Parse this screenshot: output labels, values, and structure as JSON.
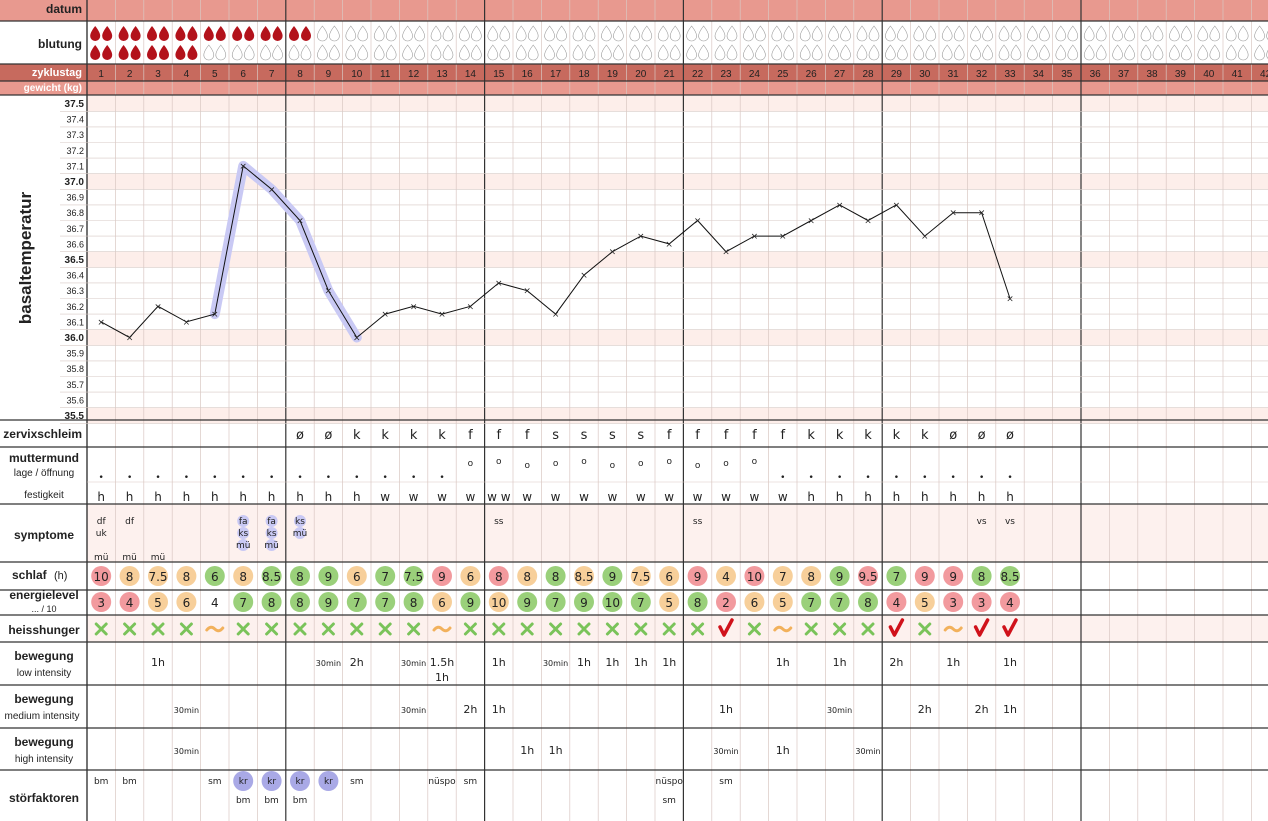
{
  "labels": {
    "datum": "datum",
    "blutung": "blutung",
    "zyklustag": "zyklustag",
    "gewicht": "gewicht (kg)",
    "basaltemperatur": "basaltemperatur",
    "zervixschleim": "zervixschleim",
    "muttermund": "muttermund",
    "muttermund_sub": "lage / öffnung",
    "festigkeit": "festigkeit",
    "symptome": "symptome",
    "schlaf": "schlaf",
    "schlaf_unit": "(h)",
    "energielevel": "energielevel",
    "energielevel_sub": "... / 10",
    "heisshunger": "heisshunger",
    "bewegung": "bewegung",
    "low_intensity": "low intensity",
    "medium_intensity": "medium intensity",
    "high_intensity": "high intensity",
    "stoerfaktoren": "störfaktoren"
  },
  "days": [
    "1",
    "2",
    "3",
    "4",
    "5",
    "6",
    "7",
    "8",
    "9",
    "10",
    "11",
    "12",
    "13",
    "14",
    "15",
    "16",
    "17",
    "18",
    "19",
    "20",
    "21",
    "22",
    "23",
    "24",
    "25",
    "26",
    "27",
    "28",
    "29",
    "30",
    "31",
    "32",
    "33",
    "34",
    "35",
    "36",
    "37",
    "38",
    "39",
    "40",
    "41",
    "42"
  ],
  "temperature_scale": [
    "37.5",
    "37.4",
    "37.3",
    "37.2",
    "37.1",
    "37.0",
    "36.9",
    "36.8",
    "36.7",
    "36.6",
    "36.5",
    "36.4",
    "36.3",
    "36.2",
    "36.1",
    "36.0",
    "35.9",
    "35.8",
    "35.7",
    "35.6",
    "35.5"
  ],
  "colors": {
    "header_red": "#e8998f",
    "zyklus_dark": "#c76a5e",
    "blood": "#b3121b",
    "green": "#9ad07a",
    "orange": "#f7cf9a",
    "pink": "#f29a9e",
    "blue_mark": "#a9a9e6",
    "tilde": "#f2b15c",
    "check": "#d0121b"
  },
  "chart_data": {
    "type": "line",
    "ylabel": "basaltemperatur",
    "ylim": [
      35.5,
      37.5
    ],
    "x": [
      1,
      2,
      3,
      4,
      5,
      6,
      7,
      8,
      9,
      10,
      11,
      12,
      13,
      14,
      15,
      16,
      17,
      18,
      19,
      20,
      21,
      22,
      23,
      24,
      25,
      26,
      27,
      28,
      29,
      30,
      31,
      32,
      33
    ],
    "y": [
      36.1,
      36.0,
      36.2,
      36.1,
      36.15,
      37.1,
      36.95,
      36.75,
      36.3,
      36.0,
      36.15,
      36.2,
      36.15,
      36.2,
      36.35,
      36.3,
      36.15,
      36.4,
      36.55,
      36.65,
      36.6,
      36.75,
      36.55,
      36.65,
      36.65,
      36.75,
      36.85,
      36.75,
      36.85,
      36.65,
      36.8,
      36.8,
      36.25
    ],
    "highlighted_days": [
      6,
      7,
      8,
      9,
      10
    ]
  },
  "blutung": {
    "top": [
      3,
      3,
      3,
      3,
      3,
      3,
      2,
      1,
      0,
      0,
      0,
      0,
      0,
      0,
      0,
      0,
      0,
      0,
      0,
      0,
      0,
      0,
      0,
      0,
      0,
      0,
      0,
      0,
      0,
      0,
      0,
      0,
      0,
      0,
      0,
      0,
      0,
      0,
      0,
      0,
      0,
      0
    ],
    "bottom": [
      3,
      3,
      3,
      1,
      0,
      0,
      0,
      0,
      0,
      0,
      0,
      0,
      0,
      0,
      0,
      0,
      0,
      0,
      0,
      0,
      0,
      0,
      0,
      0,
      0,
      0,
      0,
      0,
      0,
      0,
      0,
      0,
      0,
      0,
      0,
      0,
      0,
      0,
      0,
      0,
      0,
      0
    ]
  },
  "zervixschleim": [
    "",
    "",
    "",
    "",
    "",
    "",
    "",
    "ø",
    "ø",
    "k",
    "k",
    "k",
    "k",
    "f",
    "f",
    "f",
    "s",
    "s",
    "s",
    "s",
    "f",
    "f",
    "f",
    "f",
    "f",
    "k",
    "k",
    "k",
    "k",
    "k",
    "ø",
    "ø",
    "ø"
  ],
  "muttermund_dots": [
    "•",
    "•",
    "•",
    "•",
    "•",
    "•",
    "•",
    "•",
    "•",
    "•",
    "•",
    "•",
    "•",
    "o",
    "o",
    "o",
    "o",
    "o",
    "o",
    "o",
    "o",
    "o",
    "o",
    "o",
    "•",
    "•",
    "•",
    "•",
    "•",
    "•",
    "•",
    "•",
    "•"
  ],
  "festigkeit": [
    "h",
    "h",
    "h",
    "h",
    "h",
    "h",
    "h",
    "h",
    "h",
    "h",
    "w",
    "w",
    "w",
    "w",
    "w w",
    "w",
    "w",
    "w",
    "w",
    "w",
    "w",
    "w",
    "w",
    "w",
    "w",
    "h",
    "h",
    "h",
    "h",
    "h",
    "h",
    "h",
    "h"
  ],
  "symptome": {
    "1": [
      "df",
      "uk",
      "",
      "mü"
    ],
    "2": [
      "df",
      "",
      "",
      "mü"
    ],
    "3": [
      "",
      "",
      "",
      "mü"
    ],
    "6": [
      "fa",
      "ks",
      "mü"
    ],
    "7": [
      "fa",
      "ks",
      "mü"
    ],
    "8": [
      "ks",
      "mü"
    ],
    "15": [
      "ss"
    ],
    "22": [
      "ss"
    ],
    "32": [
      "vs"
    ],
    "33": [
      "vs"
    ]
  },
  "schlaf": [
    "10",
    "8",
    "7.5",
    "8",
    "6",
    "8",
    "8.5",
    "8",
    "9",
    "6",
    "7",
    "7.5",
    "9",
    "6",
    "8",
    "8",
    "8",
    "8.5",
    "9",
    "7.5",
    "6",
    "9",
    "4",
    "10",
    "7",
    "8",
    "9",
    "9.5",
    "7",
    "9",
    "9",
    "8",
    "8.5"
  ],
  "schlaf_colors": [
    "p",
    "o",
    "o",
    "o",
    "g",
    "o",
    "g",
    "g",
    "g",
    "o",
    "g",
    "g",
    "p",
    "o",
    "p",
    "o",
    "g",
    "o",
    "g",
    "o",
    "o",
    "p",
    "o",
    "p",
    "o",
    "o",
    "g",
    "p",
    "g",
    "p",
    "p",
    "g",
    "g"
  ],
  "energie": [
    "3",
    "4",
    "5",
    "6",
    "4",
    "7",
    "8",
    "8",
    "9",
    "7",
    "7",
    "8",
    "6",
    "9",
    "10",
    "9",
    "7",
    "9",
    "10",
    "7",
    "5",
    "8",
    "2",
    "6",
    "5",
    "7",
    "7",
    "8",
    "4",
    "5",
    "3",
    "3",
    "4"
  ],
  "energie_colors": [
    "p",
    "p",
    "o",
    "o",
    "n",
    "g",
    "g",
    "g",
    "g",
    "g",
    "g",
    "g",
    "o",
    "g",
    "o",
    "g",
    "g",
    "g",
    "g",
    "g",
    "o",
    "g",
    "p",
    "o",
    "o",
    "g",
    "g",
    "g",
    "p",
    "o",
    "p",
    "p",
    "p"
  ],
  "heisshunger": [
    "x",
    "x",
    "x",
    "x",
    "~",
    "x",
    "x",
    "x",
    "x",
    "x",
    "x",
    "x",
    "~",
    "x",
    "x",
    "x",
    "x",
    "x",
    "x",
    "x",
    "x",
    "x",
    "v",
    "x",
    "~",
    "x",
    "x",
    "x",
    "v",
    "x",
    "~",
    "v",
    "v"
  ],
  "bewegung_low": {
    "3": "1h",
    "9": "30min",
    "10": "2h",
    "12": "30min",
    "13": "1.5h 1h",
    "15": "1h",
    "17": "30min",
    "18": "1h",
    "19": "1h",
    "20": "1h",
    "21": "1h",
    "25": "1h",
    "27": "1h",
    "29": "2h",
    "31": "1h",
    "33": "1h"
  },
  "bewegung_medium": {
    "4": "30min",
    "12": "30min",
    "14": "2h",
    "15": "1h",
    "23": "1h",
    "27": "30min",
    "30": "2h",
    "32": "2h",
    "33": "1h"
  },
  "bewegung_high": {
    "4": "30min",
    "16": "1h",
    "17": "1h",
    "23": "30min",
    "25": "1h",
    "28": "30min"
  },
  "stoerfaktoren": {
    "1": "bm",
    "2": "bm",
    "5": "sm",
    "6": "kr bm",
    "7": "kr bm",
    "8": "kr bm",
    "9": "kr",
    "10": "sm",
    "13": "nüspo",
    "14": "sm",
    "21": "nüspo sm",
    "23": "sm"
  }
}
